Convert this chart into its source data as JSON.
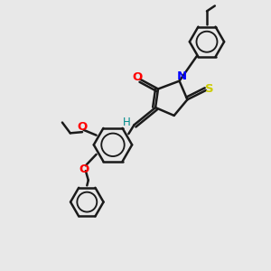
{
  "background_color": "#e8e8e8",
  "bond_color": "#1a1a1a",
  "bond_lw": 1.8,
  "atom_colors": {
    "O": "#ff0000",
    "N": "#0000ff",
    "S_thione": "#cccc00",
    "S_ring": "#1a1a1a",
    "H": "#008b8b",
    "C": "#1a1a1a"
  },
  "figsize": [
    3.0,
    3.0
  ],
  "dpi": 100
}
